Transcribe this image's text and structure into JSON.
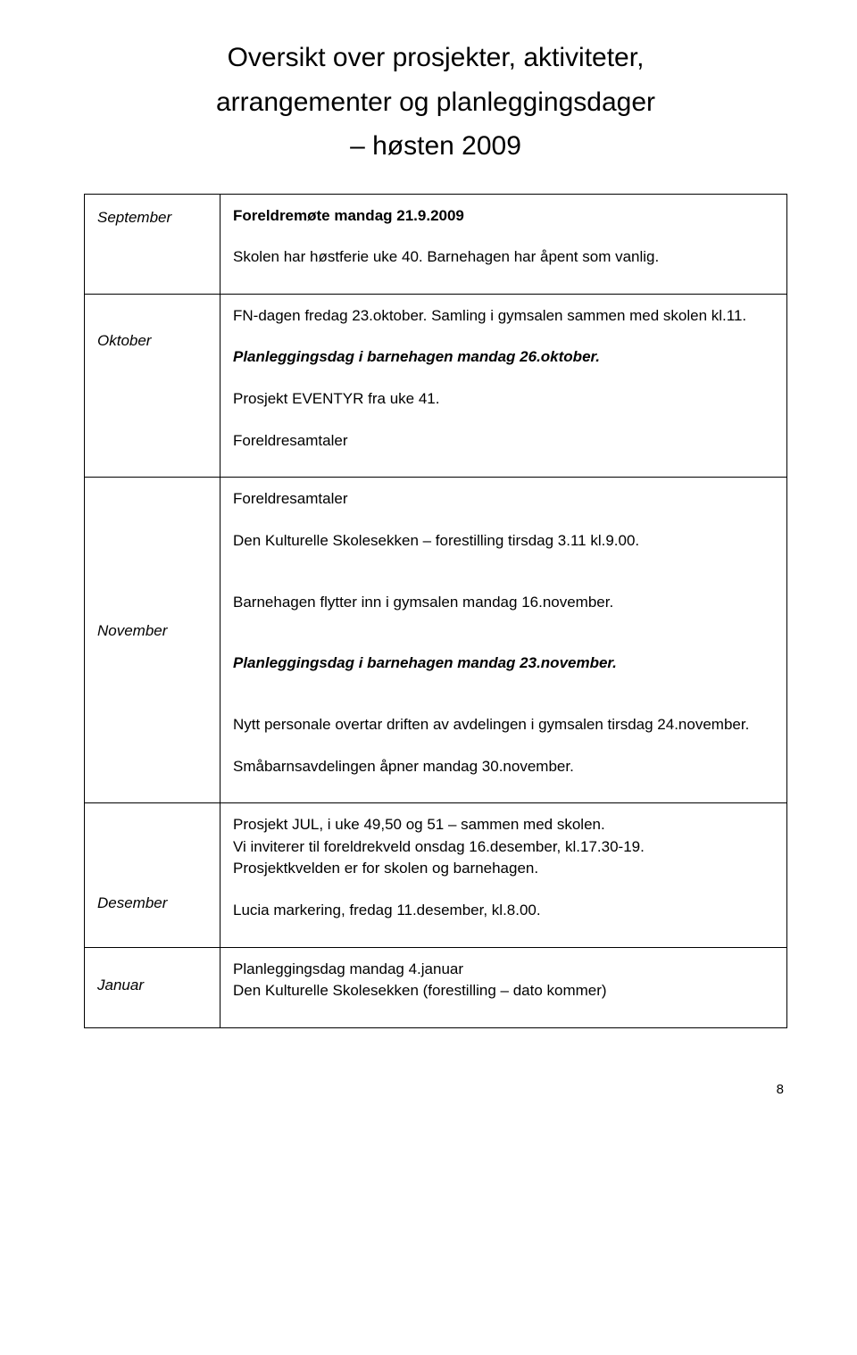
{
  "title": {
    "line1": "Oversikt over prosjekter, aktiviteter,",
    "line2": "arrangementer og planleggingsdager",
    "line3": "– høsten 2009"
  },
  "rows": [
    {
      "month": "September",
      "blocks": [
        {
          "text": "Foreldremøte mandag 21.9.2009",
          "style": "bold"
        },
        {
          "text": "Skolen har høstferie uke 40. Barnehagen har åpent som vanlig."
        }
      ]
    },
    {
      "month": "Oktober",
      "blocks": [
        {
          "text": "FN-dagen fredag 23.oktober. Samling i gymsalen sammen med skolen kl.11."
        },
        {
          "text": "Planleggingsdag i barnehagen mandag 26.oktober.",
          "style": "bold-italic"
        },
        {
          "text": "Prosjekt EVENTYR fra uke 41."
        },
        {
          "text": "Foreldresamtaler"
        }
      ]
    },
    {
      "month": "November",
      "blocks": [
        {
          "text": "Foreldresamtaler"
        },
        {
          "text": "Den Kulturelle Skolesekken – forestilling tirsdag 3.11 kl.9.00."
        },
        {
          "text": "Barnehagen flytter inn i gymsalen mandag 16.november.",
          "gapBefore": true
        },
        {
          "text": "Planleggingsdag i barnehagen mandag 23.november.",
          "style": "bold-italic",
          "gapBefore": true
        },
        {
          "text": "Nytt personale overtar driften av avdelingen i gymsalen tirsdag 24.november.",
          "gapBefore": true
        },
        {
          "text": "Småbarnsavdelingen åpner mandag 30.november."
        }
      ]
    },
    {
      "month": "Desember",
      "blocks": [
        {
          "text": "Prosjekt JUL, i uke 49,50 og 51 – sammen med skolen.\nVi inviterer til foreldrekveld onsdag 16.desember, kl.17.30-19.\nProsjektkvelden er for skolen og barnehagen."
        },
        {
          "text": "Lucia markering, fredag 11.desember, kl.8.00."
        }
      ]
    },
    {
      "month": "Januar",
      "blocks": [
        {
          "text": "Planleggingsdag mandag 4.januar\nDen Kulturelle Skolesekken (forestilling – dato kommer)"
        }
      ]
    }
  ],
  "pageNumber": "8"
}
